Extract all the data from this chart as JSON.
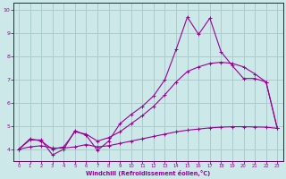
{
  "background_color": "#cce8e8",
  "line_color": "#990099",
  "grid_color": "#aacccc",
  "xlabel": "Windchill (Refroidissement éolien,°C)",
  "xlabel_color": "#990099",
  "xtick_color": "#990099",
  "ytick_color": "#990099",
  "axis_color": "#660066",
  "xlim": [
    -0.5,
    23.5
  ],
  "ylim": [
    3.5,
    10.3
  ],
  "yticks": [
    4,
    5,
    6,
    7,
    8,
    9,
    10
  ],
  "xticks": [
    0,
    1,
    2,
    3,
    4,
    5,
    6,
    7,
    8,
    9,
    10,
    11,
    12,
    13,
    14,
    15,
    16,
    17,
    18,
    19,
    20,
    21,
    22,
    23
  ],
  "line1_x": [
    0,
    1,
    2,
    3,
    4,
    5,
    6,
    7,
    8,
    9,
    10,
    11,
    12,
    13,
    14,
    15,
    16,
    17,
    18,
    19,
    20,
    21,
    22,
    23
  ],
  "line1_y": [
    4.0,
    4.4,
    4.4,
    3.75,
    4.0,
    4.8,
    4.6,
    3.95,
    4.35,
    5.1,
    5.5,
    5.85,
    6.3,
    7.0,
    8.3,
    9.7,
    8.95,
    9.65,
    8.2,
    7.6,
    7.05,
    7.05,
    6.9,
    4.9
  ],
  "line2_x": [
    0,
    1,
    2,
    3,
    4,
    5,
    6,
    7,
    8,
    9,
    10,
    11,
    12,
    13,
    14,
    15,
    16,
    17,
    18,
    19,
    20,
    21,
    22,
    23
  ],
  "line2_y": [
    4.0,
    4.45,
    4.35,
    4.0,
    4.1,
    4.75,
    4.65,
    4.35,
    4.5,
    4.75,
    5.1,
    5.45,
    5.85,
    6.35,
    6.9,
    7.35,
    7.55,
    7.7,
    7.75,
    7.7,
    7.55,
    7.25,
    6.9,
    4.9
  ],
  "line3_x": [
    0,
    1,
    2,
    3,
    4,
    5,
    6,
    7,
    8,
    9,
    10,
    11,
    12,
    13,
    14,
    15,
    16,
    17,
    18,
    19,
    20,
    21,
    22,
    23
  ],
  "line3_y": [
    4.0,
    4.1,
    4.15,
    4.05,
    4.05,
    4.1,
    4.2,
    4.1,
    4.15,
    4.25,
    4.35,
    4.45,
    4.55,
    4.65,
    4.75,
    4.82,
    4.87,
    4.92,
    4.95,
    4.97,
    4.97,
    4.96,
    4.95,
    4.9
  ]
}
